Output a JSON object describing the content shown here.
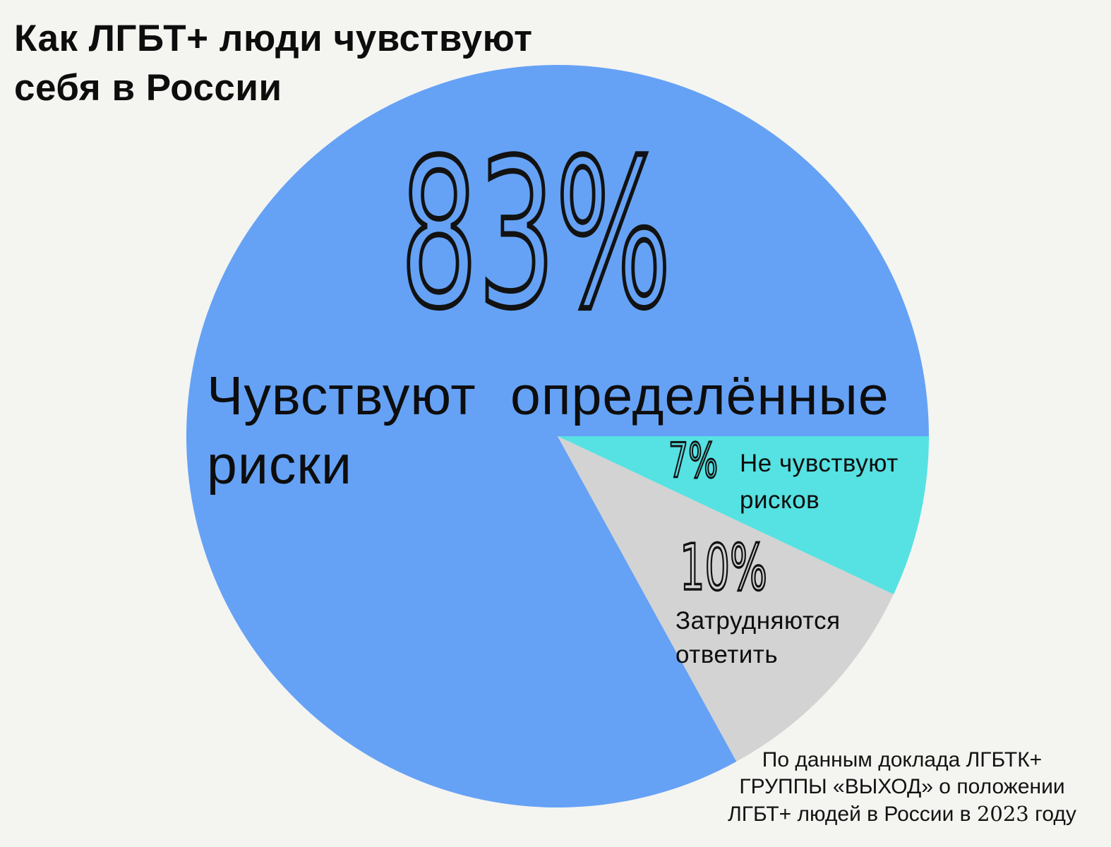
{
  "page": {
    "background_color": "#f4f4f1",
    "text_color": "#0d0d0d"
  },
  "title": {
    "text": "Как ЛГБТ+ люди чувствуют\nсебя в России"
  },
  "chart_data": {
    "type": "pie",
    "title": "Как ЛГБТ+ люди чувствуют себя в России",
    "direction": "clockwise",
    "start_angle_deg": 61.2,
    "legend_position": "labels-on-slices",
    "slices": [
      {
        "label": "Чувствуют определённые риски",
        "label_display": "Чувствуют определённые\nриски",
        "pct": 83,
        "pct_display": "83%",
        "color": "#65a2f5"
      },
      {
        "label": "Не чувствуют рисков",
        "label_display": "Не чувствуют\nрисков",
        "pct": 7,
        "pct_display": "7%",
        "color": "#56e1e2"
      },
      {
        "label": "Затрудняются ответить",
        "label_display": "Затрудняются\nответить",
        "pct": 10,
        "pct_display": "10%",
        "color": "#d3d3d3"
      }
    ],
    "source": "По данным доклада ЛГБТК+ ГРУППЫ «ВЫХОД» о положении ЛГБТ+ людей в России в 2023 году"
  },
  "source": {
    "line1": "По данным доклада ЛГБТК+",
    "line2": "ГРУППЫ «ВЫХОД» о положении",
    "line3_prefix": "ЛГБТ+ людей в России в ",
    "year": "2023",
    "line3_suffix": " году"
  }
}
